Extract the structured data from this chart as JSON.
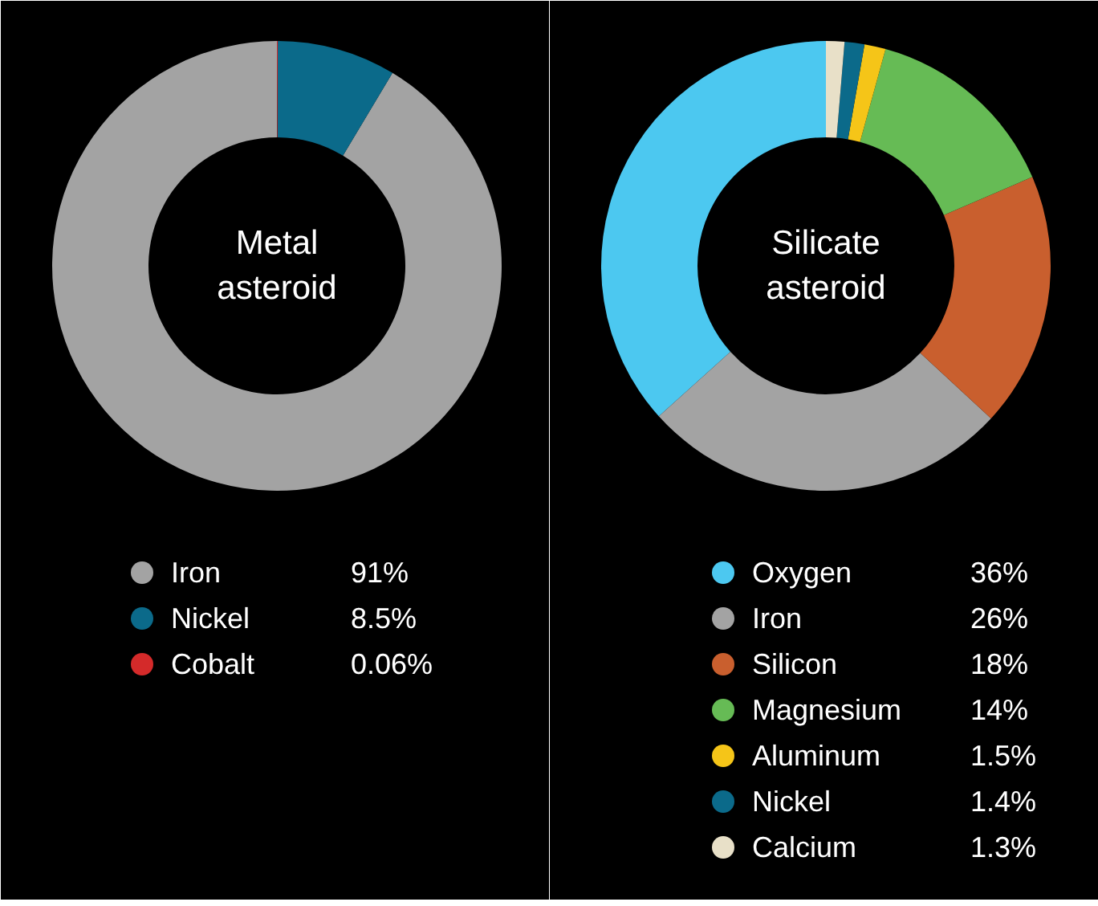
{
  "chart_data": [
    {
      "type": "donut",
      "title": "Metal asteroid",
      "categories": [
        "Iron",
        "Nickel",
        "Cobalt"
      ],
      "values": [
        91,
        8.5,
        0.06
      ],
      "colors": [
        "#a3a3a3",
        "#0b6a8a",
        "#d42a2a"
      ],
      "value_labels": [
        "91%",
        "8.5%",
        "0.06%"
      ],
      "legend": "bottom"
    },
    {
      "type": "donut",
      "title": "Silicate asteroid",
      "categories": [
        "Oxygen",
        "Iron",
        "Silicon",
        "Magnesium",
        "Aluminum",
        "Nickel",
        "Calcium"
      ],
      "values": [
        36,
        26,
        18,
        14,
        1.5,
        1.4,
        1.3
      ],
      "colors": [
        "#4cc8f0",
        "#a3a3a3",
        "#c95f2e",
        "#66bb55",
        "#f5c518",
        "#0b6a8a",
        "#e8e0c8"
      ],
      "value_labels": [
        "36%",
        "26%",
        "18%",
        "14%",
        "1.5%",
        "1.4%",
        "1.3%"
      ],
      "legend": "bottom"
    }
  ]
}
